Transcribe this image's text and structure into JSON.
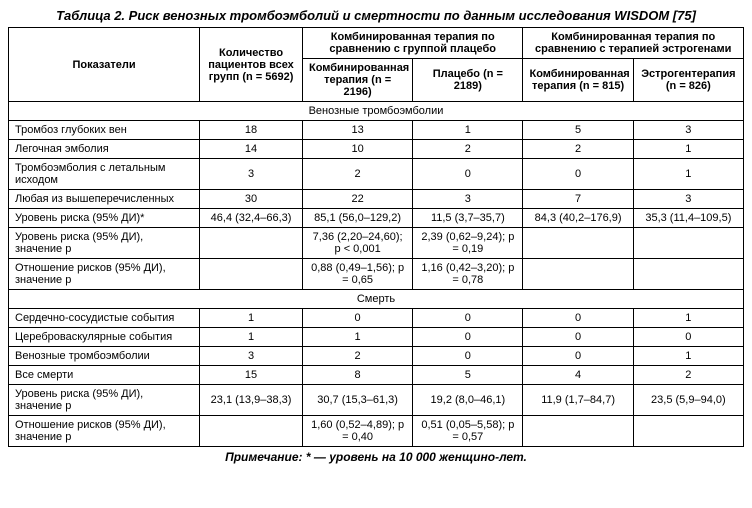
{
  "title": "Таблица 2. Риск венозных тромбоэмболий и смертности по данным исследования WISDOM [75]",
  "footnote": "Примечание: * — уровень на 10 000 женщино-лет.",
  "head": {
    "indicators": "Показатели",
    "allGroups": "Количество пациентов всех групп (n = 5692)",
    "vsPlaceboSpan": "Комбинированная терапия по сравнению с группой плацебо",
    "vsEstrogenSpan": "Комбинированная терапия по сравнению с терапией эстрогенами",
    "combP": "Комбинированная терапия (n = 2196)",
    "placebo": "Плацебо (n = 2189)",
    "combE": "Комбинированная терапия (n = 815)",
    "estrogen": "Эстрогентерапия (n = 826)"
  },
  "section1": "Венозные тромбоэмболии",
  "section2": "Смерть",
  "rowsA": [
    {
      "label": "Тромбоз глубоких вен",
      "a": "18",
      "b": "13",
      "c": "1",
      "d": "5",
      "e": "3"
    },
    {
      "label": "Легочная эмболия",
      "a": "14",
      "b": "10",
      "c": "2",
      "d": "2",
      "e": "1"
    },
    {
      "label": "Тромбоэмболия с летальным исходом",
      "a": "3",
      "b": "2",
      "c": "0",
      "d": "0",
      "e": "1"
    },
    {
      "label": "Любая из вышеперечисленных",
      "a": "30",
      "b": "22",
      "c": "3",
      "d": "7",
      "e": "3"
    },
    {
      "label": "Уровень риска (95% ДИ)*",
      "a": "46,4 (32,4–66,3)",
      "b": "85,1 (56,0–129,2)",
      "c": "11,5 (3,7–35,7)",
      "d": "84,3 (40,2–176,9)",
      "e": "35,3 (11,4–109,5)"
    }
  ],
  "rowsA2": [
    {
      "label": "Уровень риска (95% ДИ), значение p",
      "b": "7,36 (2,20–24,60); p < 0,001",
      "c": "2,39 (0,62–9,24); p = 0,19"
    },
    {
      "label": "Отношение рисков (95% ДИ), значение p",
      "b": "0,88 (0,49–1,56); p = 0,65",
      "c": "1,16 (0,42–3,20); p = 0,78"
    }
  ],
  "rowsB": [
    {
      "label": "Сердечно-сосудистые события",
      "a": "1",
      "b": "0",
      "c": "0",
      "d": "0",
      "e": "1"
    },
    {
      "label": "Цереброваскулярные события",
      "a": "1",
      "b": "1",
      "c": "0",
      "d": "0",
      "e": "0"
    },
    {
      "label": "Венозные тромбоэмболии",
      "a": "3",
      "b": "2",
      "c": "0",
      "d": "0",
      "e": "1"
    },
    {
      "label": "Все смерти",
      "a": "15",
      "b": "8",
      "c": "5",
      "d": "4",
      "e": "2"
    },
    {
      "label": "Уровень риска (95% ДИ), значение p",
      "a": "23,1 (13,9–38,3)",
      "b": "30,7 (15,3–61,3)",
      "c": "19,2 (8,0–46,1)",
      "d": "11,9 (1,7–84,7)",
      "e": "23,5 (5,9–94,0)"
    }
  ],
  "rowsB2": [
    {
      "label": "Отношение рисков (95% ДИ), значение p",
      "b": "1,60 (0,52–4,89); p = 0,40",
      "c": "0,51 (0,05–5,58); p = 0,57"
    }
  ]
}
